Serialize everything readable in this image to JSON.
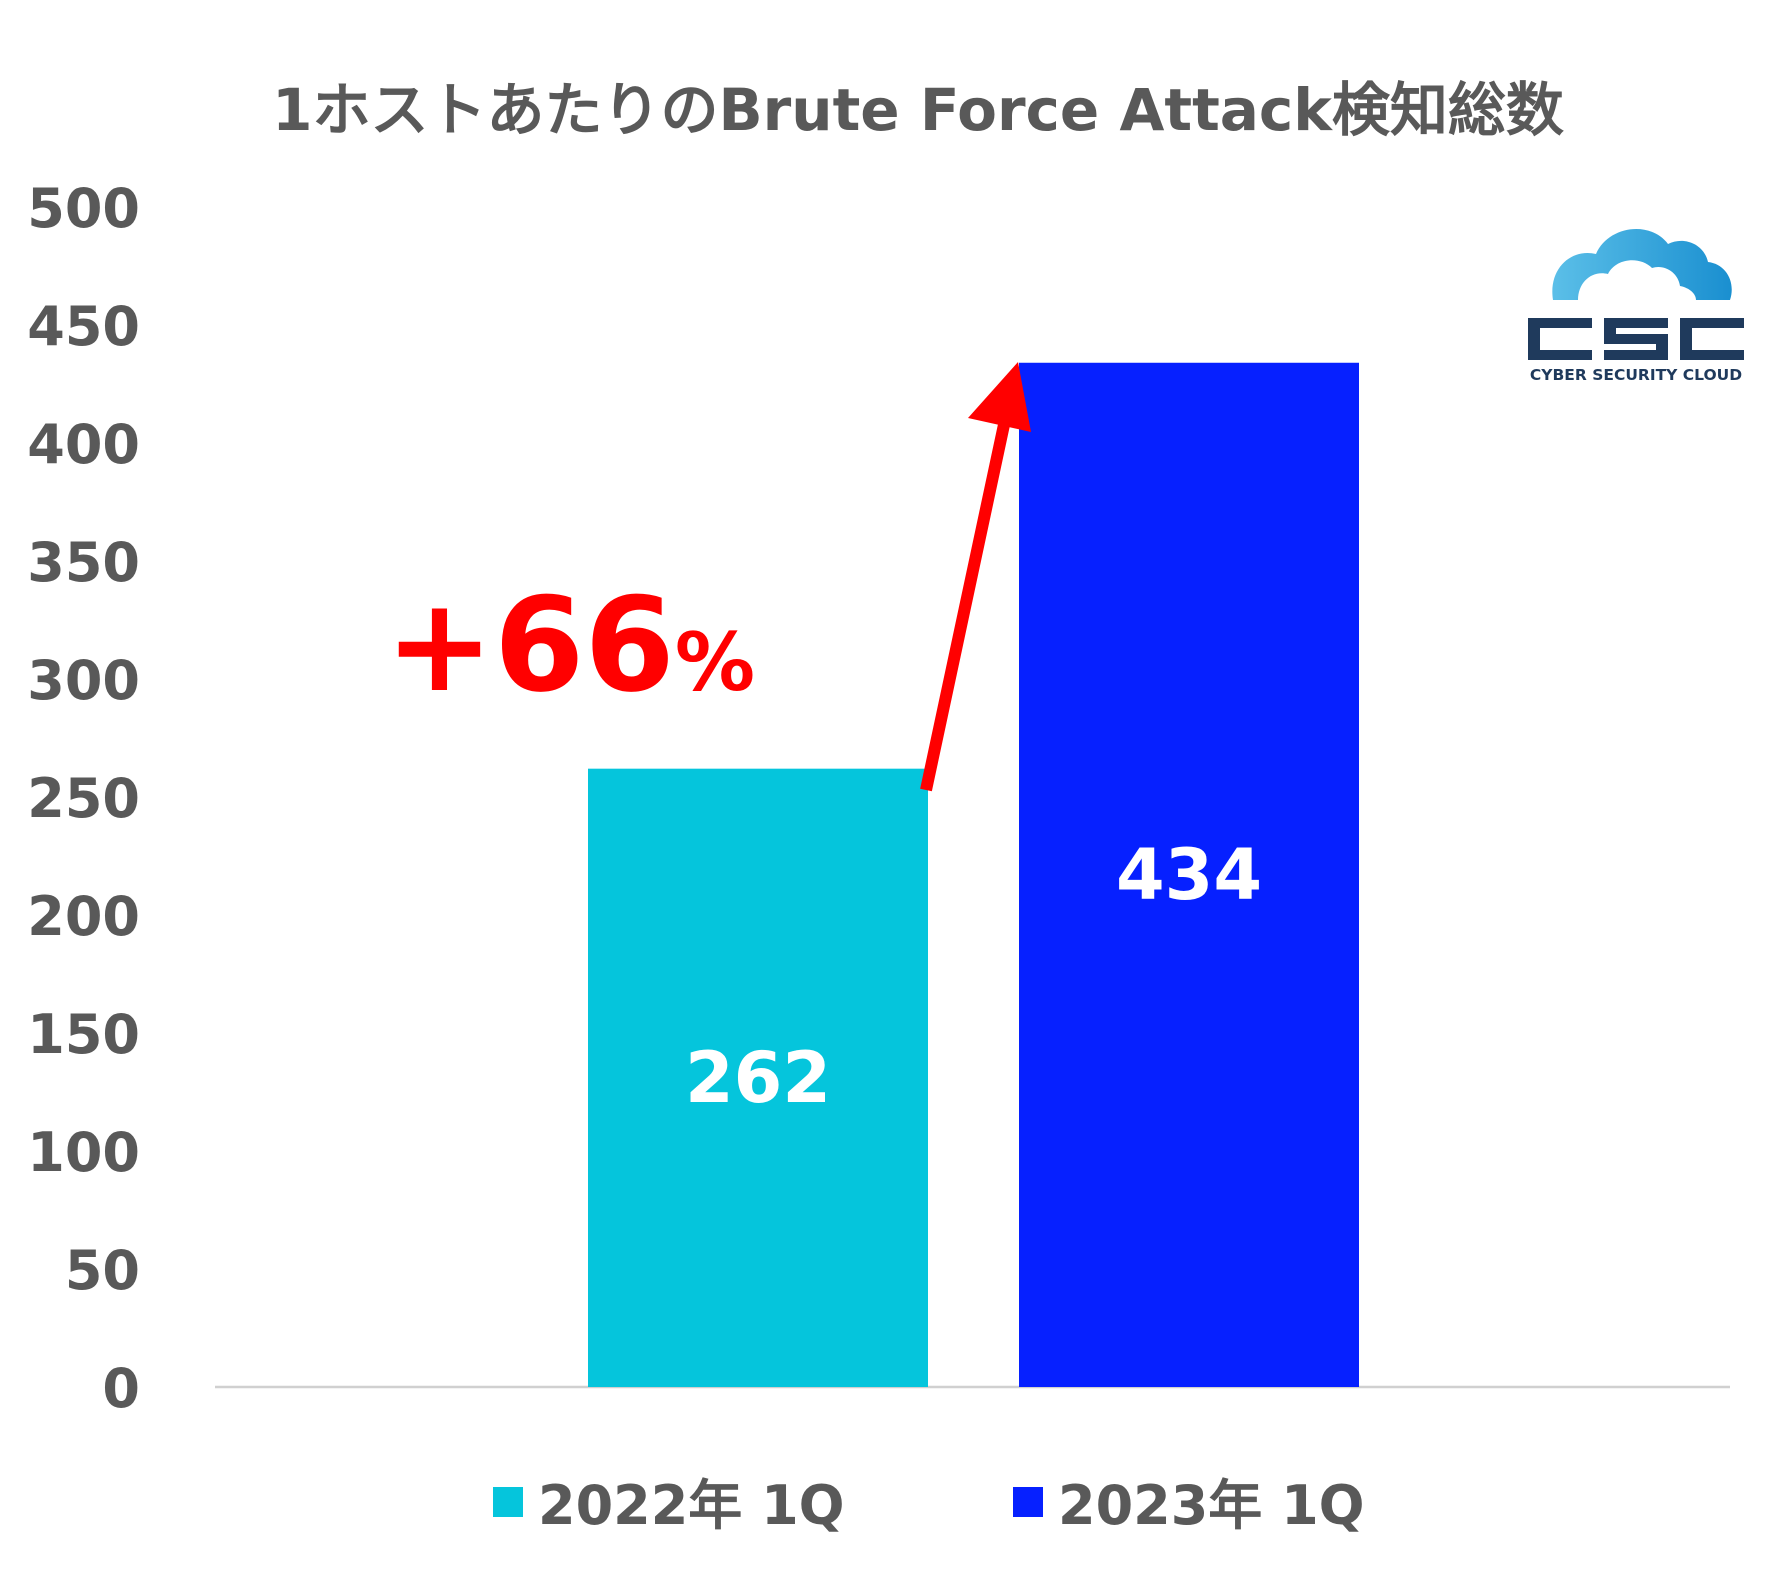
{
  "chart_data": {
    "type": "bar",
    "title": "1ホストあたりのBrute Force Attack検知総数",
    "categories": [
      "2022年 1Q",
      "2023年 1Q"
    ],
    "series": [
      {
        "name": "2022年 1Q",
        "values": [
          262,
          null
        ],
        "color": "#05c5dc"
      },
      {
        "name": "2023年 1Q",
        "values": [
          null,
          434
        ],
        "color": "#0620ff"
      }
    ],
    "ylim": [
      0,
      500
    ],
    "yticks": [
      0,
      50,
      100,
      150,
      200,
      250,
      300,
      350,
      400,
      450,
      500
    ],
    "data_labels": [
      "262",
      "434"
    ],
    "grid": false,
    "legend_position": "bottom",
    "annotation": {
      "number": "+66",
      "unit": "%",
      "color": "#ff0000",
      "arrow": "up-right"
    }
  },
  "logo": {
    "name": "csc-cloud-logo",
    "text": "CSC",
    "subtext": "CYBER SECURITY CLOUD",
    "colors": {
      "cloud": "#3aa8dc",
      "text": "#1f3a5c"
    }
  }
}
